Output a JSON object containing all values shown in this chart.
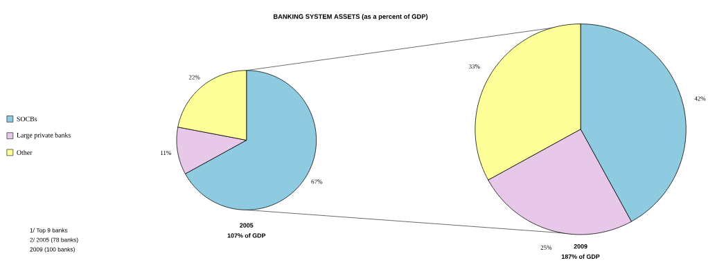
{
  "chart_data": [
    {
      "type": "pie",
      "title": "BANKING SYSTEM ASSETS (as a percent of GDP)",
      "xlabel": "2005",
      "categories": [
        "SOCBs",
        "Large private banks",
        "Other"
      ],
      "values": [
        67,
        11,
        22
      ],
      "value_labels": [
        "67%",
        "11%",
        "22%"
      ],
      "colors": [
        "#8ecae0",
        "#e8c8e8",
        "#ffff99"
      ],
      "legend": "left",
      "annotations": [
        "107% of GDP",
        "1/ Top 9 banks",
        "2/ 2005 (78 banks)",
        "2009 (100 banks)"
      ]
    },
    {
      "type": "pie",
      "xlabel": "2009",
      "categories": [
        null,
        null,
        null
      ],
      "values": [
        42,
        25,
        33
      ],
      "value_labels": [
        "42%",
        "25%",
        "33%"
      ],
      "colors": [
        "#8ecae0",
        "#e8c8e8",
        "#ffff99"
      ],
      "annotations": [
        "187% of GDP"
      ]
    }
  ]
}
